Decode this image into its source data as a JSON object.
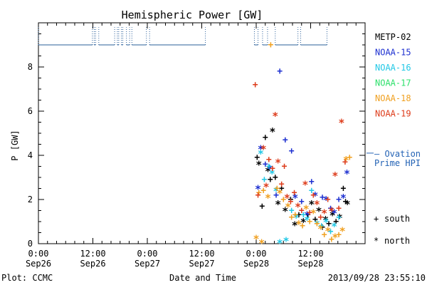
{
  "chart_data": {
    "type": "scatter",
    "title": "Hemispheric Power [GW]",
    "xlabel": "Date and Time",
    "ylabel": "P [GW]",
    "ylim": [
      0,
      10
    ],
    "yticks": [
      "0",
      "2",
      "4",
      "6",
      "8"
    ],
    "xlim_hours": [
      0,
      72
    ],
    "xticks": [
      {
        "time": "0:00",
        "date": "Sep26",
        "hour": 0
      },
      {
        "time": "12:00",
        "date": "Sep26",
        "hour": 12
      },
      {
        "time": "0:00",
        "date": "Sep27",
        "hour": 24
      },
      {
        "time": "12:00",
        "date": "Sep27",
        "hour": 36
      },
      {
        "time": "0:00",
        "date": "Sep28",
        "hour": 48
      },
      {
        "time": "12:00",
        "date": "Sep28",
        "hour": 60
      }
    ],
    "legend": [
      {
        "name": "METP-02",
        "color": "#000000"
      },
      {
        "name": "NOAA-15",
        "color": "#1c2fd0"
      },
      {
        "name": "NOAA-16",
        "color": "#21c8e6"
      },
      {
        "name": "NOAA-17",
        "color": "#2ee06b"
      },
      {
        "name": "NOAA-18",
        "color": "#f0a020"
      },
      {
        "name": "NOAA-19",
        "color": "#dd3b1a"
      }
    ],
    "ovation_label_1": "– Ovation",
    "ovation_label_2": "Prime HPI",
    "ovation_value": 4.1,
    "ovation_color": "#2463b5",
    "marker_legend": [
      {
        "symbol": "+",
        "label": "south"
      },
      {
        "symbol": "*",
        "label": "north"
      }
    ],
    "coverage_line": {
      "color": "#2a5f9a",
      "base": 9.0,
      "top": 9.8,
      "segments": [
        [
          0,
          11.9
        ],
        [
          12.3,
          12.6
        ],
        [
          13.3,
          16.8
        ],
        [
          17.4,
          17.7
        ],
        [
          18.3,
          18.6
        ],
        [
          19.4,
          20.1
        ],
        [
          20.6,
          23.8
        ],
        [
          24.5,
          36.8
        ],
        [
          47.6,
          48.4
        ],
        [
          49.4,
          50.5
        ],
        [
          52.2,
          57.2
        ],
        [
          57.8,
          63.6
        ]
      ]
    },
    "series": [
      {
        "name": "METP-02",
        "color": "#000000",
        "points": [
          {
            "x": 48.2,
            "y": 3.9,
            "m": "+"
          },
          {
            "x": 48.6,
            "y": 3.6,
            "m": "*"
          },
          {
            "x": 49.3,
            "y": 1.7,
            "m": "+"
          },
          {
            "x": 50.0,
            "y": 4.8,
            "m": "+"
          },
          {
            "x": 50.6,
            "y": 3.3,
            "m": "*"
          },
          {
            "x": 51.1,
            "y": 2.9,
            "m": "+"
          },
          {
            "x": 51.6,
            "y": 5.1,
            "m": "*"
          },
          {
            "x": 52.2,
            "y": 3.0,
            "m": "+"
          },
          {
            "x": 52.8,
            "y": 1.8,
            "m": "*"
          },
          {
            "x": 53.6,
            "y": 2.5,
            "m": "+"
          },
          {
            "x": 54.4,
            "y": 1.5,
            "m": "*"
          },
          {
            "x": 55.6,
            "y": 2.0,
            "m": "+"
          },
          {
            "x": 56.5,
            "y": 0.85,
            "m": "*"
          },
          {
            "x": 57.4,
            "y": 1.3,
            "m": "+"
          },
          {
            "x": 58.4,
            "y": 1.0,
            "m": "*"
          },
          {
            "x": 59.4,
            "y": 1.3,
            "m": "+"
          },
          {
            "x": 60.2,
            "y": 1.8,
            "m": "*"
          },
          {
            "x": 61.0,
            "y": 1.1,
            "m": "+"
          },
          {
            "x": 61.8,
            "y": 1.5,
            "m": "*"
          },
          {
            "x": 62.6,
            "y": 0.75,
            "m": "+"
          },
          {
            "x": 63.3,
            "y": 1.1,
            "m": "*"
          },
          {
            "x": 64.0,
            "y": 0.9,
            "m": "+"
          },
          {
            "x": 64.8,
            "y": 1.3,
            "m": "*"
          },
          {
            "x": 65.6,
            "y": 1.0,
            "m": "+"
          },
          {
            "x": 66.4,
            "y": 1.2,
            "m": "*"
          },
          {
            "x": 67.2,
            "y": 2.5,
            "m": "+"
          },
          {
            "x": 67.7,
            "y": 1.9,
            "m": "+"
          },
          {
            "x": 68.1,
            "y": 1.8,
            "m": "*"
          }
        ]
      },
      {
        "name": "NOAA-15",
        "color": "#1c2fd0",
        "points": [
          {
            "x": 48.4,
            "y": 2.5,
            "m": "*"
          },
          {
            "x": 49.0,
            "y": 4.3,
            "m": "*"
          },
          {
            "x": 50.0,
            "y": 3.6,
            "m": "+"
          },
          {
            "x": 51.0,
            "y": 3.4,
            "m": "*"
          },
          {
            "x": 52.4,
            "y": 2.2,
            "m": "+"
          },
          {
            "x": 53.2,
            "y": 7.8,
            "m": "+"
          },
          {
            "x": 54.4,
            "y": 4.7,
            "m": "+"
          },
          {
            "x": 55.8,
            "y": 4.2,
            "m": "+"
          },
          {
            "x": 56.6,
            "y": 2.1,
            "m": "*"
          },
          {
            "x": 58.0,
            "y": 1.9,
            "m": "+"
          },
          {
            "x": 59.2,
            "y": 1.3,
            "m": "*"
          },
          {
            "x": 60.2,
            "y": 2.8,
            "m": "+"
          },
          {
            "x": 61.0,
            "y": 2.2,
            "m": "*"
          },
          {
            "x": 62.6,
            "y": 2.1,
            "m": "+"
          },
          {
            "x": 63.4,
            "y": 2.0,
            "m": "*"
          },
          {
            "x": 64.4,
            "y": 1.6,
            "m": "+"
          },
          {
            "x": 65.2,
            "y": 1.4,
            "m": "*"
          },
          {
            "x": 66.2,
            "y": 2.0,
            "m": "+"
          },
          {
            "x": 67.2,
            "y": 2.1,
            "m": "*"
          },
          {
            "x": 68.0,
            "y": 3.2,
            "m": "*"
          }
        ]
      },
      {
        "name": "NOAA-16",
        "color": "#21c8e6",
        "points": [
          {
            "x": 49.0,
            "y": 4.1,
            "m": "*"
          },
          {
            "x": 49.8,
            "y": 2.9,
            "m": "+"
          },
          {
            "x": 50.8,
            "y": 3.5,
            "m": "+"
          },
          {
            "x": 51.5,
            "y": 3.2,
            "m": "*"
          },
          {
            "x": 52.4,
            "y": 2.4,
            "m": "*"
          },
          {
            "x": 53.2,
            "y": 0.05,
            "m": "*"
          },
          {
            "x": 54.6,
            "y": 0.15,
            "m": "*"
          },
          {
            "x": 55.8,
            "y": 1.5,
            "m": "+"
          },
          {
            "x": 56.8,
            "y": 1.2,
            "m": "*"
          },
          {
            "x": 58.4,
            "y": 1.3,
            "m": "+"
          },
          {
            "x": 59.2,
            "y": 1.1,
            "m": "*"
          },
          {
            "x": 60.2,
            "y": 2.4,
            "m": "+"
          },
          {
            "x": 61.4,
            "y": 0.9,
            "m": "*"
          },
          {
            "x": 62.4,
            "y": 0.8,
            "m": "+"
          },
          {
            "x": 63.4,
            "y": 1.0,
            "m": "*"
          },
          {
            "x": 64.4,
            "y": 0.55,
            "m": "+"
          },
          {
            "x": 65.2,
            "y": 0.8,
            "m": "*"
          },
          {
            "x": 66.2,
            "y": 1.2,
            "m": "+"
          }
        ]
      },
      {
        "name": "NOAA-18",
        "color": "#f0a020",
        "points": [
          {
            "x": 48.0,
            "y": 0.25,
            "m": "*"
          },
          {
            "x": 49.2,
            "y": 0.05,
            "m": "*"
          },
          {
            "x": 48.6,
            "y": 2.3,
            "m": "+"
          },
          {
            "x": 49.6,
            "y": 2.4,
            "m": "+"
          },
          {
            "x": 50.6,
            "y": 2.1,
            "m": "*"
          },
          {
            "x": 51.2,
            "y": 9.0,
            "m": "+"
          },
          {
            "x": 52.6,
            "y": 2.5,
            "m": "+"
          },
          {
            "x": 53.2,
            "y": 2.3,
            "m": "*"
          },
          {
            "x": 54.0,
            "y": 2.0,
            "m": "+"
          },
          {
            "x": 55.0,
            "y": 1.7,
            "m": "*"
          },
          {
            "x": 55.8,
            "y": 1.2,
            "m": "+"
          },
          {
            "x": 56.6,
            "y": 1.3,
            "m": "+"
          },
          {
            "x": 57.4,
            "y": 0.9,
            "m": "*"
          },
          {
            "x": 58.2,
            "y": 0.8,
            "m": "+"
          },
          {
            "x": 59.0,
            "y": 1.6,
            "m": "*"
          },
          {
            "x": 59.8,
            "y": 1.0,
            "m": "+"
          },
          {
            "x": 60.6,
            "y": 1.4,
            "m": "*"
          },
          {
            "x": 61.4,
            "y": 0.9,
            "m": "+"
          },
          {
            "x": 62.2,
            "y": 0.7,
            "m": "*"
          },
          {
            "x": 63.0,
            "y": 0.4,
            "m": "+"
          },
          {
            "x": 63.8,
            "y": 0.6,
            "m": "*"
          },
          {
            "x": 64.6,
            "y": 0.2,
            "m": "+"
          },
          {
            "x": 65.4,
            "y": 0.3,
            "m": "*"
          },
          {
            "x": 66.2,
            "y": 0.4,
            "m": "+"
          },
          {
            "x": 67.0,
            "y": 0.6,
            "m": "*"
          },
          {
            "x": 67.8,
            "y": 3.8,
            "m": "*"
          },
          {
            "x": 68.6,
            "y": 3.9,
            "m": "+"
          }
        ]
      },
      {
        "name": "NOAA-19",
        "color": "#dd3b1a",
        "points": [
          {
            "x": 47.8,
            "y": 7.2,
            "m": "+"
          },
          {
            "x": 48.4,
            "y": 2.2,
            "m": "+"
          },
          {
            "x": 49.6,
            "y": 4.3,
            "m": "*"
          },
          {
            "x": 50.2,
            "y": 2.6,
            "m": "*"
          },
          {
            "x": 50.8,
            "y": 3.8,
            "m": "+"
          },
          {
            "x": 51.6,
            "y": 3.4,
            "m": "+"
          },
          {
            "x": 52.2,
            "y": 5.8,
            "m": "*"
          },
          {
            "x": 52.8,
            "y": 3.7,
            "m": "*"
          },
          {
            "x": 53.6,
            "y": 2.7,
            "m": "+"
          },
          {
            "x": 54.2,
            "y": 3.5,
            "m": "+"
          },
          {
            "x": 54.8,
            "y": 2.1,
            "m": "*"
          },
          {
            "x": 55.6,
            "y": 1.9,
            "m": "+"
          },
          {
            "x": 56.4,
            "y": 2.3,
            "m": "+"
          },
          {
            "x": 57.2,
            "y": 1.7,
            "m": "*"
          },
          {
            "x": 58.0,
            "y": 1.5,
            "m": "+"
          },
          {
            "x": 58.8,
            "y": 2.7,
            "m": "*"
          },
          {
            "x": 59.8,
            "y": 1.4,
            "m": "+"
          },
          {
            "x": 60.6,
            "y": 2.2,
            "m": "+"
          },
          {
            "x": 61.4,
            "y": 1.8,
            "m": "*"
          },
          {
            "x": 62.2,
            "y": 1.2,
            "m": "+"
          },
          {
            "x": 63.0,
            "y": 1.4,
            "m": "*"
          },
          {
            "x": 63.8,
            "y": 2.0,
            "m": "+"
          },
          {
            "x": 64.6,
            "y": 1.5,
            "m": "*"
          },
          {
            "x": 65.4,
            "y": 3.1,
            "m": "*"
          },
          {
            "x": 66.2,
            "y": 1.6,
            "m": "+"
          },
          {
            "x": 66.8,
            "y": 5.5,
            "m": "*"
          },
          {
            "x": 67.6,
            "y": 3.7,
            "m": "+"
          }
        ]
      }
    ]
  },
  "footer": {
    "plot_label": "Plot: CCMC",
    "timestamp": "2013/09/28 23:55:10"
  }
}
